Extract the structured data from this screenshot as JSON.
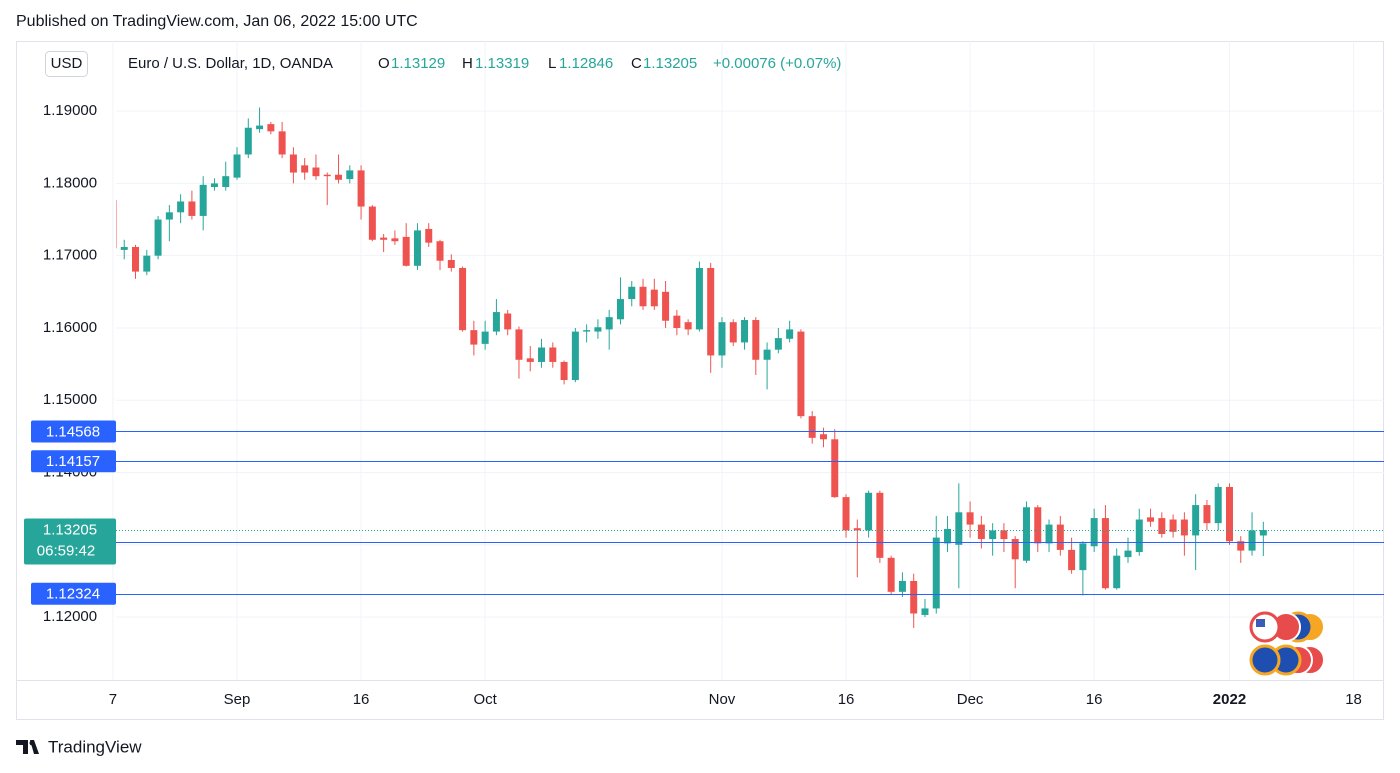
{
  "published": "Published on TradingView.com, Jan 06, 2022 15:00 UTC",
  "brand": "TradingView",
  "currency": "USD",
  "chart_data": {
    "type": "candlestick",
    "symbol": "Euro / U.S. Dollar, 1D, OANDA",
    "ohlc_labels": [
      "O",
      "H",
      "L",
      "C"
    ],
    "change": "+0.00076 (+0.07%)",
    "countdown": "06:59:42",
    "up_color": "#26a69a",
    "down_color": "#ef5350",
    "level_color": "#2962ff",
    "levels": [
      1.14568,
      1.14157,
      1.13036,
      1.12324
    ],
    "open": [
      1.1777,
      1.1708,
      1.1712,
      1.1678,
      1.17,
      1.175,
      1.176,
      1.1775,
      1.1755,
      1.1795,
      1.1795,
      1.1808,
      1.184,
      1.1875,
      1.1882,
      1.1872,
      1.184,
      1.1825,
      1.1822,
      1.1812,
      1.1812,
      1.1806,
      1.1818,
      1.1768,
      1.1725,
      1.1724,
      1.1726,
      1.1686,
      1.1737,
      1.172,
      1.1694,
      1.1683,
      1.1597,
      1.1578,
      1.1595,
      1.162,
      1.1598,
      1.1558,
      1.1553,
      1.1573,
      1.1553,
      1.1528,
      1.1595,
      1.1595,
      1.1598,
      1.1612,
      1.164,
      1.1657,
      1.1653,
      1.165,
      1.1617,
      1.1608,
      1.1598,
      1.1683,
      1.1562,
      1.1608,
      1.158,
      1.1611,
      1.1556,
      1.157,
      1.1585,
      1.1595,
      1.1478,
      1.1453,
      1.1446,
      1.1366,
      1.1323,
      1.132,
      1.1372,
      1.1282,
      1.1235,
      1.125,
      1.1203,
      1.1212,
      1.1302,
      1.13,
      1.1345,
      1.1328,
      1.1308,
      1.132,
      1.1308,
      1.1278,
      1.1352,
      1.1302,
      1.1328,
      1.1293,
      1.1265,
      1.1298,
      1.1337,
      1.124,
      1.1283,
      1.129,
      1.1338,
      1.1337,
      1.1335,
      1.1335,
      1.1313,
      1.1355,
      1.133,
      1.138,
      1.1305,
      1.1292,
      1.13129
    ],
    "high": [
      1.1777,
      1.1722,
      1.1715,
      1.1708,
      1.1755,
      1.177,
      1.1785,
      1.179,
      1.181,
      1.1807,
      1.183,
      1.185,
      1.189,
      1.1905,
      1.1885,
      1.1885,
      1.185,
      1.1835,
      1.184,
      1.1815,
      1.184,
      1.1825,
      1.1825,
      1.177,
      1.173,
      1.1735,
      1.1745,
      1.1745,
      1.1745,
      1.1722,
      1.1702,
      1.1685,
      1.161,
      1.161,
      1.164,
      1.1625,
      1.1602,
      1.1575,
      1.1585,
      1.158,
      1.1555,
      1.16,
      1.1605,
      1.1612,
      1.1625,
      1.167,
      1.1665,
      1.1668,
      1.1668,
      1.1665,
      1.1625,
      1.1612,
      1.1692,
      1.169,
      1.1615,
      1.1612,
      1.1615,
      1.1615,
      1.158,
      1.16,
      1.161,
      1.1598,
      1.1485,
      1.1462,
      1.146,
      1.137,
      1.1335,
      1.1375,
      1.1375,
      1.1285,
      1.1262,
      1.126,
      1.1225,
      1.134,
      1.134,
      1.1385,
      1.136,
      1.134,
      1.133,
      1.133,
      1.1312,
      1.136,
      1.1355,
      1.1335,
      1.134,
      1.131,
      1.1305,
      1.135,
      1.1355,
      1.1295,
      1.131,
      1.135,
      1.135,
      1.1345,
      1.1342,
      1.1345,
      1.137,
      1.1362,
      1.1385,
      1.1385,
      1.1312,
      1.1345,
      1.13319
    ],
    "low": [
      1.1705,
      1.1695,
      1.1668,
      1.1673,
      1.1695,
      1.172,
      1.1745,
      1.175,
      1.1735,
      1.179,
      1.179,
      1.1805,
      1.1835,
      1.187,
      1.1868,
      1.1835,
      1.18,
      1.1805,
      1.1805,
      1.177,
      1.18,
      1.18,
      1.175,
      1.172,
      1.1705,
      1.1715,
      1.1685,
      1.168,
      1.1712,
      1.168,
      1.1678,
      1.1595,
      1.1562,
      1.157,
      1.159,
      1.159,
      1.153,
      1.154,
      1.1545,
      1.1545,
      1.1522,
      1.1525,
      1.158,
      1.1585,
      1.157,
      1.1605,
      1.163,
      1.1625,
      1.1625,
      1.16,
      1.159,
      1.159,
      1.1595,
      1.1538,
      1.1545,
      1.1575,
      1.157,
      1.1535,
      1.1515,
      1.1565,
      1.158,
      1.1475,
      1.144,
      1.1435,
      1.1365,
      1.131,
      1.1255,
      1.131,
      1.1275,
      1.1232,
      1.1228,
      1.1185,
      1.12,
      1.1205,
      1.129,
      1.124,
      1.131,
      1.1295,
      1.1285,
      1.129,
      1.124,
      1.1275,
      1.129,
      1.129,
      1.1285,
      1.126,
      1.123,
      1.129,
      1.1238,
      1.1238,
      1.1275,
      1.1285,
      1.1325,
      1.131,
      1.131,
      1.1285,
      1.1265,
      1.132,
      1.132,
      1.13,
      1.1275,
      1.1285,
      1.12846
    ],
    "close": [
      1.171,
      1.1712,
      1.1678,
      1.17,
      1.175,
      1.176,
      1.1775,
      1.1755,
      1.1798,
      1.18,
      1.181,
      1.184,
      1.1877,
      1.188,
      1.1872,
      1.184,
      1.1815,
      1.1815,
      1.181,
      1.181,
      1.1805,
      1.1818,
      1.1768,
      1.1722,
      1.1722,
      1.172,
      1.1686,
      1.1735,
      1.1718,
      1.1693,
      1.1683,
      1.1597,
      1.1577,
      1.1595,
      1.1622,
      1.1598,
      1.1556,
      1.1553,
      1.1573,
      1.1553,
      1.1528,
      1.1595,
      1.1597,
      1.1601,
      1.1615,
      1.164,
      1.1657,
      1.163,
      1.163,
      1.161,
      1.16,
      1.1598,
      1.1683,
      1.1562,
      1.1608,
      1.158,
      1.1611,
      1.1556,
      1.157,
      1.1586,
      1.1598,
      1.1478,
      1.1448,
      1.1446,
      1.1366,
      1.132,
      1.132,
      1.1372,
      1.1282,
      1.1235,
      1.125,
      1.1205,
      1.1212,
      1.131,
      1.1322,
      1.1345,
      1.1328,
      1.1308,
      1.132,
      1.1308,
      1.128,
      1.1352,
      1.1302,
      1.1328,
      1.1293,
      1.1265,
      1.1302,
      1.1337,
      1.124,
      1.1285,
      1.1292,
      1.1335,
      1.1332,
      1.1315,
      1.1318,
      1.1313,
      1.1355,
      1.133,
      1.138,
      1.1305,
      1.1292,
      1.132,
      1.13205
    ],
    "xlim": [
      0.27,
      112.7
    ],
    "xticks": [
      {
        "value": 0,
        "label": "7"
      },
      {
        "value": 11,
        "label": "Sep"
      },
      {
        "value": 22,
        "label": "16"
      },
      {
        "value": 33,
        "label": "Oct"
      },
      {
        "value": 54,
        "label": "Nov"
      },
      {
        "value": 65,
        "label": "16"
      },
      {
        "value": 76,
        "label": "Dec"
      },
      {
        "value": 87,
        "label": "16"
      },
      {
        "value": 99,
        "label": "2022",
        "bold": true
      },
      {
        "value": 110,
        "label": "18"
      }
    ],
    "ylim": [
      1.1113,
      1.1997
    ],
    "yticks": [
      {
        "value": 1.12,
        "label": "1.12000"
      },
      {
        "value": 1.13,
        "label": "1.13000"
      },
      {
        "value": 1.14,
        "label": "1.14000"
      },
      {
        "value": 1.15,
        "label": "1.15000"
      },
      {
        "value": 1.16,
        "label": "1.16000"
      },
      {
        "value": 1.17,
        "label": "1.17000"
      },
      {
        "value": 1.18,
        "label": "1.18000"
      },
      {
        "value": 1.19,
        "label": "1.19000"
      }
    ],
    "grid": true
  }
}
